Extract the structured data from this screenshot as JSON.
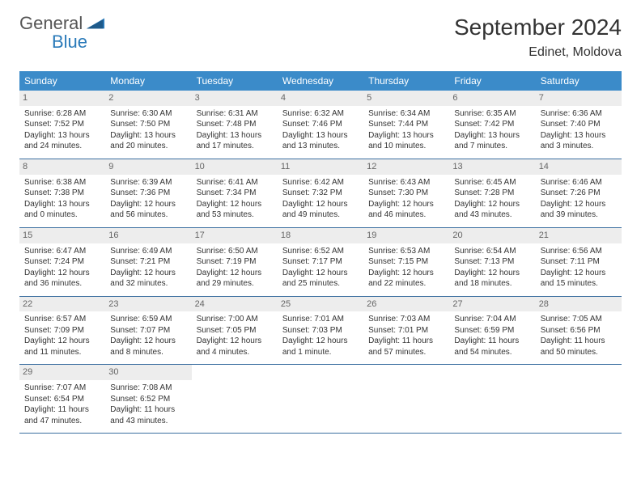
{
  "logo": {
    "line1": "General",
    "line2": "Blue"
  },
  "title": "September 2024",
  "location": "Edinet, Moldova",
  "colors": {
    "header_bg": "#3b8bc9",
    "header_fg": "#ffffff",
    "daynum_bg": "#ededed",
    "daynum_fg": "#666666",
    "row_border": "#3b6fa0",
    "logo_accent": "#2a7ab9"
  },
  "weekdays": [
    "Sunday",
    "Monday",
    "Tuesday",
    "Wednesday",
    "Thursday",
    "Friday",
    "Saturday"
  ],
  "weeks": [
    [
      {
        "n": "1",
        "sr": "Sunrise: 6:28 AM",
        "ss": "Sunset: 7:52 PM",
        "d1": "Daylight: 13 hours",
        "d2": "and 24 minutes."
      },
      {
        "n": "2",
        "sr": "Sunrise: 6:30 AM",
        "ss": "Sunset: 7:50 PM",
        "d1": "Daylight: 13 hours",
        "d2": "and 20 minutes."
      },
      {
        "n": "3",
        "sr": "Sunrise: 6:31 AM",
        "ss": "Sunset: 7:48 PM",
        "d1": "Daylight: 13 hours",
        "d2": "and 17 minutes."
      },
      {
        "n": "4",
        "sr": "Sunrise: 6:32 AM",
        "ss": "Sunset: 7:46 PM",
        "d1": "Daylight: 13 hours",
        "d2": "and 13 minutes."
      },
      {
        "n": "5",
        "sr": "Sunrise: 6:34 AM",
        "ss": "Sunset: 7:44 PM",
        "d1": "Daylight: 13 hours",
        "d2": "and 10 minutes."
      },
      {
        "n": "6",
        "sr": "Sunrise: 6:35 AM",
        "ss": "Sunset: 7:42 PM",
        "d1": "Daylight: 13 hours",
        "d2": "and 7 minutes."
      },
      {
        "n": "7",
        "sr": "Sunrise: 6:36 AM",
        "ss": "Sunset: 7:40 PM",
        "d1": "Daylight: 13 hours",
        "d2": "and 3 minutes."
      }
    ],
    [
      {
        "n": "8",
        "sr": "Sunrise: 6:38 AM",
        "ss": "Sunset: 7:38 PM",
        "d1": "Daylight: 13 hours",
        "d2": "and 0 minutes."
      },
      {
        "n": "9",
        "sr": "Sunrise: 6:39 AM",
        "ss": "Sunset: 7:36 PM",
        "d1": "Daylight: 12 hours",
        "d2": "and 56 minutes."
      },
      {
        "n": "10",
        "sr": "Sunrise: 6:41 AM",
        "ss": "Sunset: 7:34 PM",
        "d1": "Daylight: 12 hours",
        "d2": "and 53 minutes."
      },
      {
        "n": "11",
        "sr": "Sunrise: 6:42 AM",
        "ss": "Sunset: 7:32 PM",
        "d1": "Daylight: 12 hours",
        "d2": "and 49 minutes."
      },
      {
        "n": "12",
        "sr": "Sunrise: 6:43 AM",
        "ss": "Sunset: 7:30 PM",
        "d1": "Daylight: 12 hours",
        "d2": "and 46 minutes."
      },
      {
        "n": "13",
        "sr": "Sunrise: 6:45 AM",
        "ss": "Sunset: 7:28 PM",
        "d1": "Daylight: 12 hours",
        "d2": "and 43 minutes."
      },
      {
        "n": "14",
        "sr": "Sunrise: 6:46 AM",
        "ss": "Sunset: 7:26 PM",
        "d1": "Daylight: 12 hours",
        "d2": "and 39 minutes."
      }
    ],
    [
      {
        "n": "15",
        "sr": "Sunrise: 6:47 AM",
        "ss": "Sunset: 7:24 PM",
        "d1": "Daylight: 12 hours",
        "d2": "and 36 minutes."
      },
      {
        "n": "16",
        "sr": "Sunrise: 6:49 AM",
        "ss": "Sunset: 7:21 PM",
        "d1": "Daylight: 12 hours",
        "d2": "and 32 minutes."
      },
      {
        "n": "17",
        "sr": "Sunrise: 6:50 AM",
        "ss": "Sunset: 7:19 PM",
        "d1": "Daylight: 12 hours",
        "d2": "and 29 minutes."
      },
      {
        "n": "18",
        "sr": "Sunrise: 6:52 AM",
        "ss": "Sunset: 7:17 PM",
        "d1": "Daylight: 12 hours",
        "d2": "and 25 minutes."
      },
      {
        "n": "19",
        "sr": "Sunrise: 6:53 AM",
        "ss": "Sunset: 7:15 PM",
        "d1": "Daylight: 12 hours",
        "d2": "and 22 minutes."
      },
      {
        "n": "20",
        "sr": "Sunrise: 6:54 AM",
        "ss": "Sunset: 7:13 PM",
        "d1": "Daylight: 12 hours",
        "d2": "and 18 minutes."
      },
      {
        "n": "21",
        "sr": "Sunrise: 6:56 AM",
        "ss": "Sunset: 7:11 PM",
        "d1": "Daylight: 12 hours",
        "d2": "and 15 minutes."
      }
    ],
    [
      {
        "n": "22",
        "sr": "Sunrise: 6:57 AM",
        "ss": "Sunset: 7:09 PM",
        "d1": "Daylight: 12 hours",
        "d2": "and 11 minutes."
      },
      {
        "n": "23",
        "sr": "Sunrise: 6:59 AM",
        "ss": "Sunset: 7:07 PM",
        "d1": "Daylight: 12 hours",
        "d2": "and 8 minutes."
      },
      {
        "n": "24",
        "sr": "Sunrise: 7:00 AM",
        "ss": "Sunset: 7:05 PM",
        "d1": "Daylight: 12 hours",
        "d2": "and 4 minutes."
      },
      {
        "n": "25",
        "sr": "Sunrise: 7:01 AM",
        "ss": "Sunset: 7:03 PM",
        "d1": "Daylight: 12 hours",
        "d2": "and 1 minute."
      },
      {
        "n": "26",
        "sr": "Sunrise: 7:03 AM",
        "ss": "Sunset: 7:01 PM",
        "d1": "Daylight: 11 hours",
        "d2": "and 57 minutes."
      },
      {
        "n": "27",
        "sr": "Sunrise: 7:04 AM",
        "ss": "Sunset: 6:59 PM",
        "d1": "Daylight: 11 hours",
        "d2": "and 54 minutes."
      },
      {
        "n": "28",
        "sr": "Sunrise: 7:05 AM",
        "ss": "Sunset: 6:56 PM",
        "d1": "Daylight: 11 hours",
        "d2": "and 50 minutes."
      }
    ],
    [
      {
        "n": "29",
        "sr": "Sunrise: 7:07 AM",
        "ss": "Sunset: 6:54 PM",
        "d1": "Daylight: 11 hours",
        "d2": "and 47 minutes."
      },
      {
        "n": "30",
        "sr": "Sunrise: 7:08 AM",
        "ss": "Sunset: 6:52 PM",
        "d1": "Daylight: 11 hours",
        "d2": "and 43 minutes."
      },
      {
        "empty": true
      },
      {
        "empty": true
      },
      {
        "empty": true
      },
      {
        "empty": true
      },
      {
        "empty": true
      }
    ]
  ]
}
